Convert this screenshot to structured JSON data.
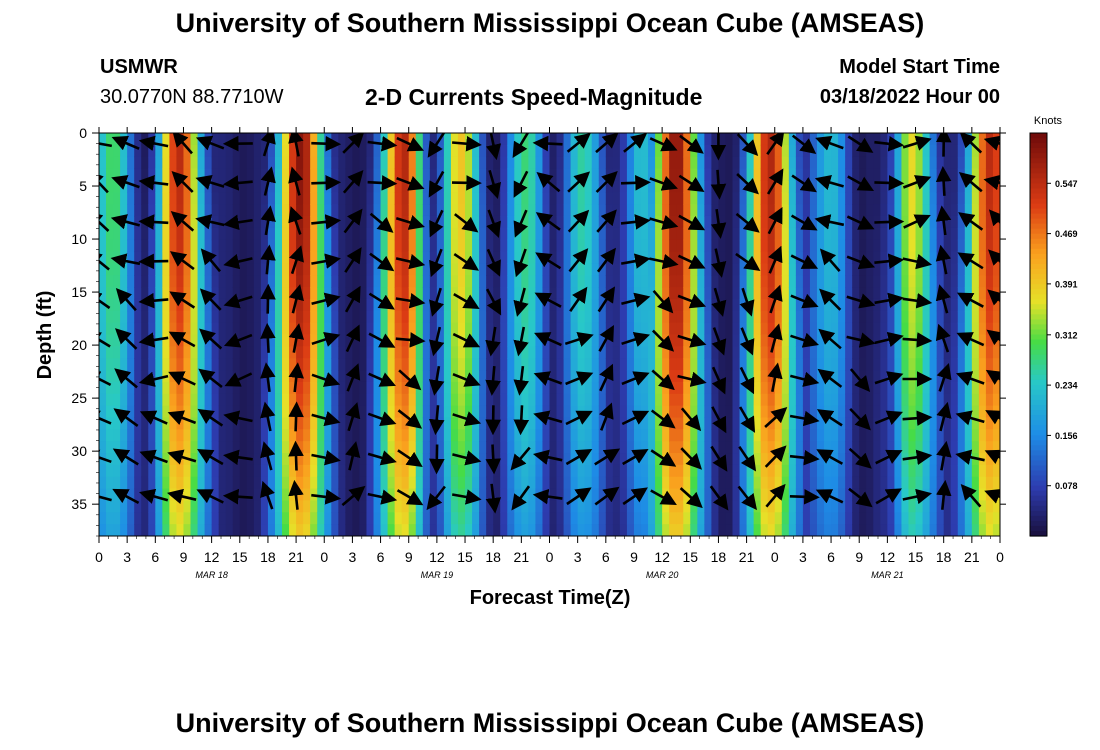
{
  "header": {
    "title": "University of Southern Mississippi Ocean Cube (AMSEAS)",
    "footer_title": "University of Southern Mississippi Ocean Cube (AMSEAS)",
    "station_id": "USMWR",
    "station_coords": "30.0770N  88.7710W",
    "subtitle": "2-D Currents Speed-Magnitude",
    "model_start_label": "Model Start Time",
    "model_start_value": "03/18/2022 Hour 00"
  },
  "chart_data": {
    "type": "heatmap",
    "title": "2-D Currents Speed-Magnitude",
    "xlabel": "Forecast Time(Z)",
    "ylabel": "Depth (ft)",
    "x_range_hours": [
      0,
      96
    ],
    "x_tick_hours": [
      0,
      3,
      6,
      9,
      12,
      15,
      18,
      21,
      24,
      27,
      30,
      33,
      36,
      39,
      42,
      45,
      48,
      51,
      54,
      57,
      60,
      63,
      66,
      69,
      72,
      75,
      78,
      81,
      84,
      87,
      90,
      93,
      96
    ],
    "x_tick_labels": [
      "0",
      "3",
      "6",
      "9",
      "12",
      "15",
      "18",
      "21",
      "0",
      "3",
      "6",
      "9",
      "12",
      "15",
      "18",
      "21",
      "0",
      "3",
      "6",
      "9",
      "12",
      "15",
      "18",
      "21",
      "0",
      "3",
      "6",
      "9",
      "12",
      "15",
      "18",
      "21",
      "0"
    ],
    "date_labels": [
      {
        "text": "MAR 18",
        "hour": 12
      },
      {
        "text": "MAR 19",
        "hour": 36
      },
      {
        "text": "MAR 20",
        "hour": 60
      },
      {
        "text": "MAR 21",
        "hour": 84
      }
    ],
    "y_range_ft": [
      0,
      38
    ],
    "y_inverted": true,
    "y_ticks": [
      0,
      5,
      10,
      15,
      20,
      25,
      30,
      35
    ],
    "colorbar": {
      "unit": "Knots",
      "ticks": [
        0.547,
        0.469,
        0.391,
        0.312,
        0.234,
        0.156,
        0.078
      ],
      "range": [
        0,
        0.625
      ]
    },
    "speed_peak_hours": [
      {
        "hour": 1.5,
        "speed": 0.29
      },
      {
        "hour": 8.5,
        "speed": 0.55
      },
      {
        "hour": 21.5,
        "speed": 0.6
      },
      {
        "hour": 32.5,
        "speed": 0.56
      },
      {
        "hour": 38.5,
        "speed": 0.4
      },
      {
        "hour": 45.5,
        "speed": 0.28
      },
      {
        "hour": 51.5,
        "speed": 0.26
      },
      {
        "hour": 57.5,
        "speed": 0.24
      },
      {
        "hour": 61.5,
        "speed": 0.6
      },
      {
        "hour": 71.5,
        "speed": 0.56
      },
      {
        "hour": 78,
        "speed": 0.22
      },
      {
        "hour": 86.5,
        "speed": 0.38
      },
      {
        "hour": 95,
        "speed": 0.55
      }
    ],
    "slack_water_hours": [
      5,
      15.5,
      27.5,
      35.5,
      42,
      48.5,
      55.5,
      67,
      81,
      84
    ],
    "vector_directions_deg": {
      "hours": [
        0,
        3,
        6,
        9,
        12,
        15,
        18,
        21,
        24,
        27,
        30,
        33,
        36,
        39,
        42,
        45,
        48,
        51,
        54,
        57,
        60,
        63,
        66,
        69,
        72,
        75,
        78,
        81,
        84,
        87,
        90,
        93,
        96
      ],
      "angles": [
        300,
        300,
        275,
        300,
        300,
        265,
        0,
        0,
        90,
        30,
        110,
        115,
        200,
        110,
        170,
        200,
        290,
        55,
        40,
        70,
        120,
        120,
        160,
        145,
        30,
        110,
        300,
        120,
        80,
        85,
        0,
        300,
        300
      ]
    }
  }
}
